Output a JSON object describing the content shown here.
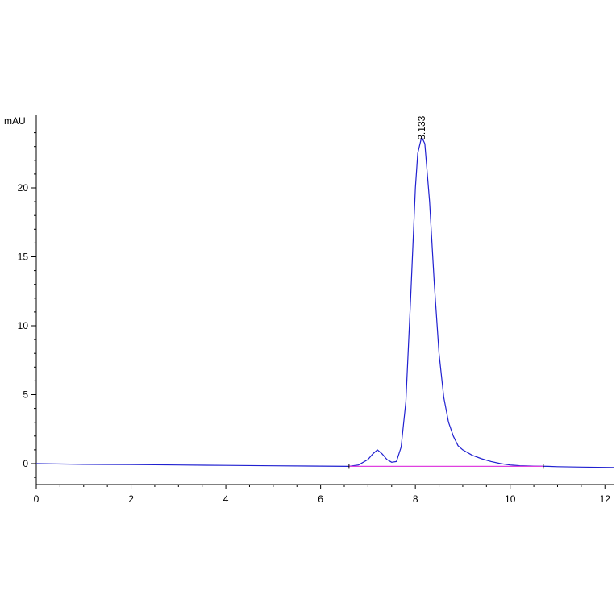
{
  "chart_data": {
    "type": "line",
    "title": "",
    "xlabel": "",
    "ylabel": "mAU",
    "xlim": [
      0,
      12.2
    ],
    "ylim": [
      -1.5,
      25.5
    ],
    "x_ticks": [
      0,
      2,
      4,
      6,
      8,
      10,
      12
    ],
    "y_ticks": [
      0,
      5,
      10,
      15,
      20
    ],
    "grid": false,
    "legend": "none",
    "colors": {
      "signal": "#2020d0",
      "baseline": "#e040e0"
    },
    "annotations": [
      {
        "text": "8.133",
        "x": 8.133,
        "y": 23.7
      }
    ],
    "series": [
      {
        "color": "#2020d0",
        "x": [
          0,
          1,
          2,
          3,
          4,
          5,
          6,
          6.6,
          6.8,
          7.0,
          7.1,
          7.2,
          7.3,
          7.4,
          7.5,
          7.6,
          7.7,
          7.8,
          7.9,
          8.0,
          8.05,
          8.133,
          8.2,
          8.3,
          8.4,
          8.5,
          8.6,
          8.7,
          8.8,
          8.9,
          9.0,
          9.2,
          9.4,
          9.6,
          9.8,
          10.0,
          10.2,
          10.5,
          10.8,
          11.0,
          11.5,
          12.2
        ],
        "y": [
          0.0,
          -0.05,
          -0.07,
          -0.1,
          -0.13,
          -0.16,
          -0.18,
          -0.2,
          -0.1,
          0.3,
          0.7,
          1.0,
          0.7,
          0.3,
          0.1,
          0.15,
          1.2,
          4.5,
          12.0,
          20.0,
          22.5,
          23.7,
          23.2,
          19.0,
          13.0,
          8.0,
          4.8,
          3.0,
          2.0,
          1.3,
          1.0,
          0.6,
          0.35,
          0.15,
          0.0,
          -0.1,
          -0.15,
          -0.18,
          -0.2,
          -0.22,
          -0.25,
          -0.28
        ]
      },
      {
        "color": "#e040e0",
        "x": [
          6.6,
          10.7
        ],
        "y": [
          -0.2,
          -0.2
        ]
      }
    ]
  }
}
